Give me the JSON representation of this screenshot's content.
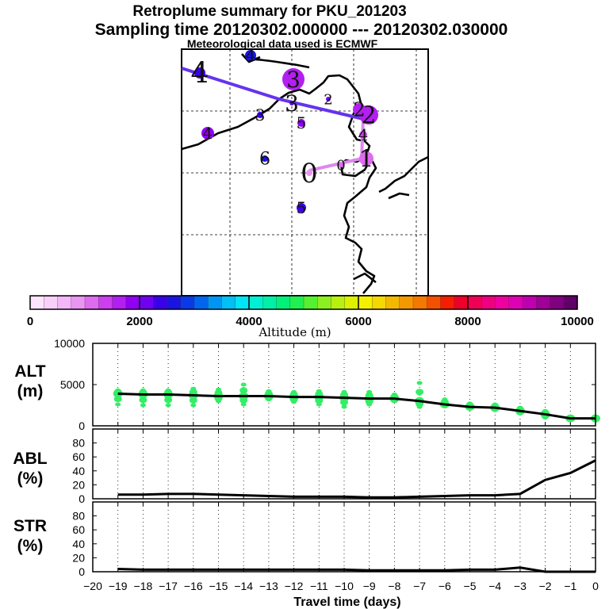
{
  "title": {
    "line1": "Retroplume summary for PKU_201203",
    "line2": "Sampling time   20120302.000000 --- 20120302.030000",
    "line3": "Meteorological data used is ECMWF"
  },
  "colors": {
    "track_main": "#6633ee",
    "track_recent": "#dd88ee",
    "scatter": "#33ee66",
    "coast": "#000000"
  },
  "colorbar": {
    "label": "Altitude (m)",
    "tick_labels": [
      "0",
      "2000",
      "4000",
      "6000",
      "8000",
      "10000"
    ],
    "range": [
      0,
      10000
    ],
    "colors": [
      "#fde6fd",
      "#f9d0f9",
      "#f3b6f6",
      "#ea95f2",
      "#dd6cee",
      "#cc3fee",
      "#b31ff0",
      "#9100f0",
      "#7000f0",
      "#3a00ea",
      "#1a14e0",
      "#0a3ae8",
      "#0066f0",
      "#0095f5",
      "#00c0f5",
      "#00e5f5",
      "#00f0d5",
      "#00f0a8",
      "#00f07a",
      "#20f050",
      "#55f030",
      "#8cf020",
      "#b8f010",
      "#dcf000",
      "#f5f000",
      "#f5d800",
      "#f5b800",
      "#f59800",
      "#f57800",
      "#f55000",
      "#f51e00",
      "#ee0028",
      "#f00055",
      "#f00080",
      "#f000a0",
      "#e000b5",
      "#c000b0",
      "#a00098",
      "#800080",
      "#600068"
    ]
  },
  "map": {
    "points": [
      {
        "label": "0",
        "alt": 800
      },
      {
        "label": "1",
        "alt": 1200
      },
      {
        "label": "2",
        "alt": 1500
      },
      {
        "label": "2",
        "alt": 1700
      },
      {
        "label": "3",
        "alt": 1600
      },
      {
        "label": "4",
        "alt": 2400
      },
      {
        "label": "3",
        "alt": 2200
      },
      {
        "label": "4",
        "alt": 1400
      },
      {
        "label": "5",
        "alt": 1800
      },
      {
        "label": "5",
        "alt": 2300
      },
      {
        "label": "6",
        "alt": 2700
      },
      {
        "label": "4",
        "alt": 1900
      },
      {
        "label": "4",
        "alt": 2500
      },
      {
        "label": "3",
        "alt": 2400
      },
      {
        "label": "2",
        "alt": 2000
      },
      {
        "label": "0",
        "alt": 1200
      }
    ]
  },
  "chart_data": [
    {
      "type": "scatter",
      "name": "ALT",
      "ylabel": "ALT\n(m)",
      "ylabel_line1": "ALT",
      "ylabel_line2": "(m)",
      "xlim": [
        -20,
        0
      ],
      "ylim": [
        0,
        10000
      ],
      "yticks": [
        "0",
        "5000",
        "10000"
      ],
      "x": [
        -19,
        -18,
        -17,
        -16,
        -15,
        -14,
        -13,
        -12,
        -11,
        -10,
        -9,
        -8,
        -7,
        -6,
        -5,
        -4,
        -3,
        -2,
        -1,
        0
      ],
      "mean_altitude": [
        3900,
        3800,
        3800,
        3700,
        3600,
        3600,
        3600,
        3500,
        3500,
        3400,
        3300,
        3300,
        3000,
        2600,
        2300,
        2200,
        1800,
        1400,
        900,
        900
      ],
      "scatter_min": [
        2600,
        2500,
        2500,
        2500,
        3000,
        2600,
        3200,
        2900,
        2600,
        2300,
        2600,
        3000,
        2300,
        2600,
        2300,
        1900,
        1500,
        1000,
        800,
        700
      ],
      "scatter_max": [
        4300,
        4300,
        4300,
        4500,
        4400,
        5000,
        4200,
        4100,
        4200,
        4100,
        4100,
        3800,
        5200,
        3200,
        2700,
        2600,
        2200,
        1800,
        1000,
        1100
      ]
    },
    {
      "type": "line",
      "name": "ABL",
      "ylabel_line1": "ABL",
      "ylabel_line2": "(%)",
      "xlim": [
        -20,
        0
      ],
      "ylim": [
        0,
        100
      ],
      "yticks": [
        "0",
        "20",
        "40",
        "60",
        "80"
      ],
      "x": [
        -19,
        -18,
        -17,
        -16,
        -15,
        -14,
        -13,
        -12,
        -11,
        -10,
        -9,
        -8,
        -7,
        -6,
        -5,
        -4,
        -3,
        -2,
        -1,
        0
      ],
      "values": [
        6,
        6,
        7,
        7,
        6,
        5,
        4,
        3,
        3,
        3,
        2,
        2,
        3,
        4,
        5,
        5,
        7,
        27,
        37,
        55
      ]
    },
    {
      "type": "line",
      "name": "STR",
      "ylabel_line1": "STR",
      "ylabel_line2": "(%)",
      "xlim": [
        -20,
        0
      ],
      "ylim": [
        0,
        100
      ],
      "yticks": [
        "0",
        "20",
        "40",
        "60",
        "80"
      ],
      "xlabel": "Travel time (days)",
      "xticks": [
        "−20",
        "−19",
        "−18",
        "−17",
        "−16",
        "−15",
        "−14",
        "−13",
        "−12",
        "−11",
        "−10",
        "−9",
        "−8",
        "−7",
        "−6",
        "−5",
        "−4",
        "−3",
        "−2",
        "−1",
        "0"
      ],
      "x": [
        -19,
        -18,
        -17,
        -16,
        -15,
        -14,
        -13,
        -12,
        -11,
        -10,
        -9,
        -8,
        -7,
        -6,
        -5,
        -4,
        -3,
        -2,
        -1,
        0
      ],
      "values": [
        4,
        3,
        3,
        3,
        3,
        3,
        3,
        3,
        3,
        3,
        2,
        2,
        2,
        2,
        3,
        3,
        6,
        0,
        0,
        0
      ]
    }
  ]
}
